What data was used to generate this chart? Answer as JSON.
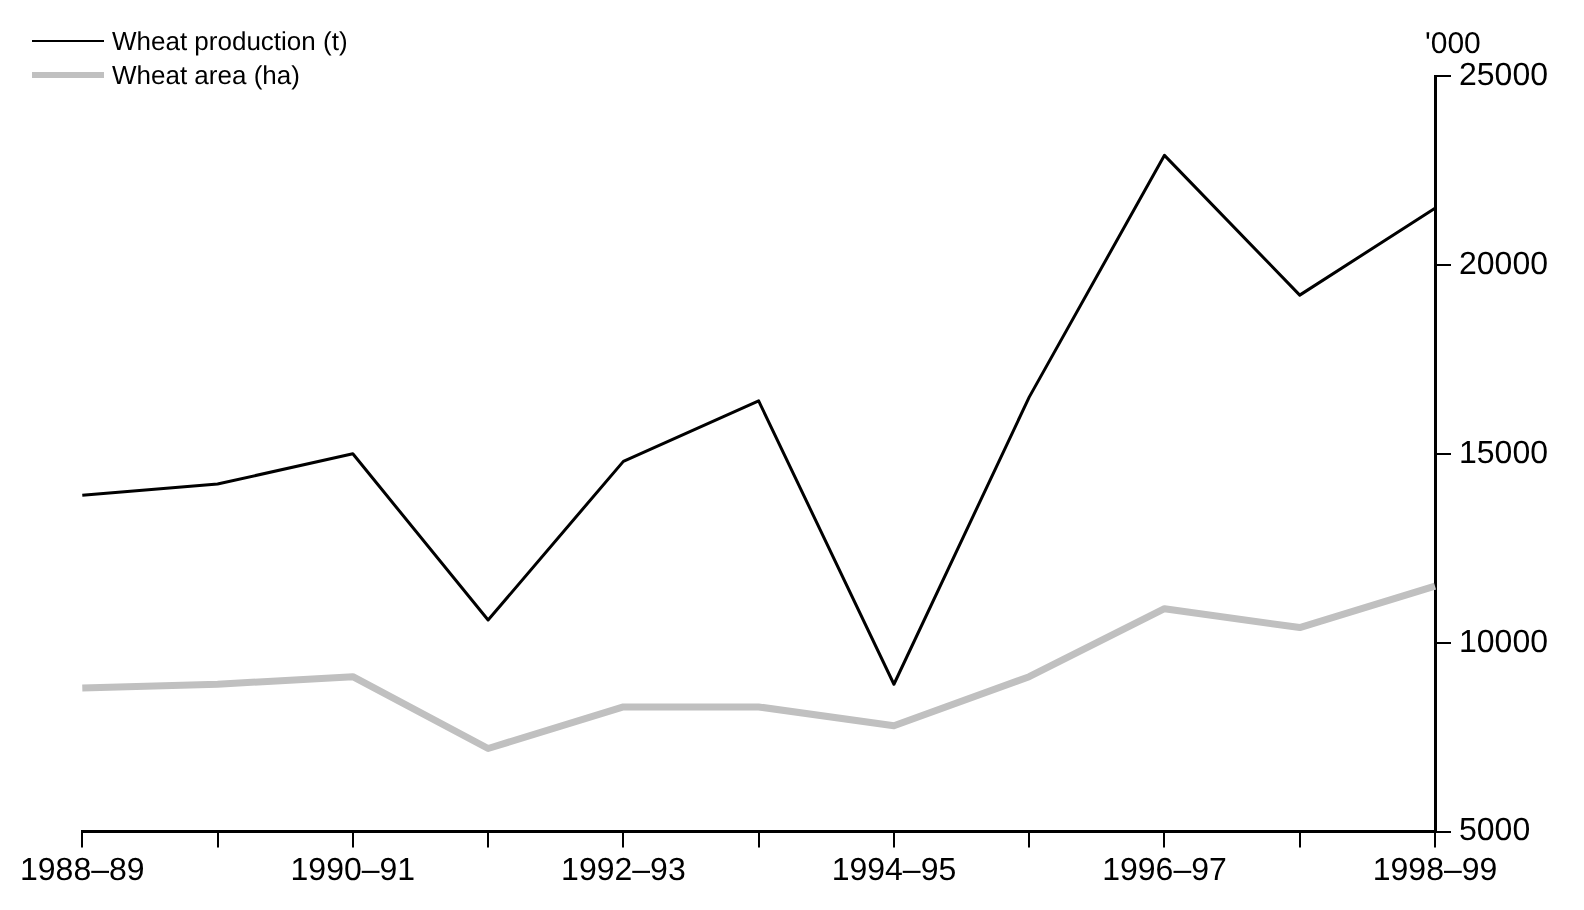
{
  "chart_data": {
    "type": "line",
    "ylabel": "'000",
    "categories": [
      "1988–89",
      null,
      "1990–91",
      null,
      "1992–93",
      null,
      "1994–95",
      null,
      "1996–97",
      null,
      "1998–99"
    ],
    "series": [
      {
        "name": "Wheat production (t)",
        "color": "#000000",
        "values": [
          13900,
          14200,
          15000,
          10600,
          14800,
          16400,
          8900,
          16500,
          22900,
          19200,
          21500
        ]
      },
      {
        "name": "Wheat area (ha)",
        "color": "#c0c0c0",
        "values": [
          8800,
          8900,
          9100,
          7200,
          8300,
          8300,
          7800,
          9100,
          10900,
          10400,
          11500
        ]
      }
    ],
    "ylim": [
      5000,
      25000
    ],
    "yticks": [
      5000,
      10000,
      15000,
      20000,
      25000
    ],
    "grid": false,
    "legend": "top left",
    "marker": "none",
    "line_style": "solid"
  }
}
